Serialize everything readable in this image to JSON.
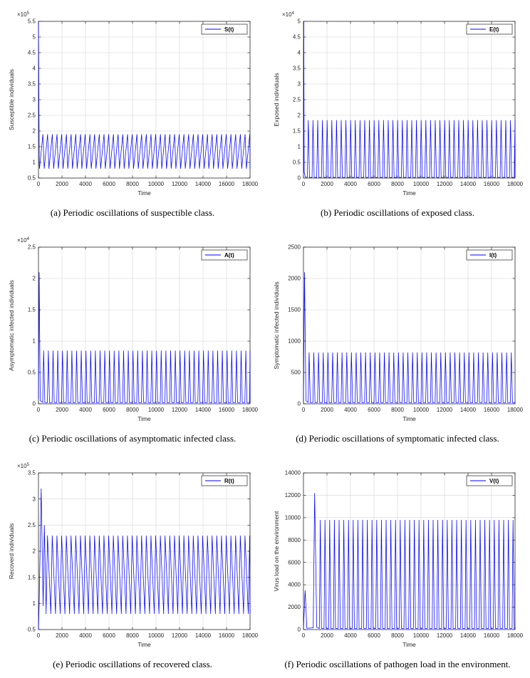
{
  "figure": {
    "line_color": "#0000ff",
    "grid_color": "#d6d6d6",
    "axis_color": "#262626",
    "background": "#ffffff"
  },
  "chart_data": [
    {
      "id": "susceptible",
      "type": "line",
      "caption": "(a) Periodic oscillations of suspectible class.",
      "legend": "S(t)",
      "xlabel": "Time",
      "ylabel": "Susceptible individuals",
      "xlim": [
        0,
        18000
      ],
      "xticks": [
        0,
        2000,
        4000,
        6000,
        8000,
        10000,
        12000,
        14000,
        16000,
        18000
      ],
      "ylim": [
        0.5,
        5.5
      ],
      "yticks": [
        0.5,
        1,
        1.5,
        2,
        2.5,
        3,
        3.5,
        4,
        4.5,
        5,
        5.5
      ],
      "y_exponent": 5,
      "series": {
        "name": "S(t)",
        "color": "#0000ff",
        "transient_points": [
          [
            0,
            5.5
          ],
          [
            70,
            0.92
          ]
        ],
        "oscillation": {
          "type": "sawtooth",
          "start": 90,
          "period": 400,
          "min": 0.8,
          "max": 1.9,
          "rise_fraction": 0.72
        }
      }
    },
    {
      "id": "exposed",
      "type": "line",
      "caption": "(b) Periodic oscillations of exposed class.",
      "legend": "E(t)",
      "xlabel": "Time",
      "ylabel": "Exposed individuals",
      "xlim": [
        0,
        18000
      ],
      "xticks": [
        0,
        2000,
        4000,
        6000,
        8000,
        10000,
        12000,
        14000,
        16000,
        18000
      ],
      "ylim": [
        0,
        5
      ],
      "yticks": [
        0,
        0.5,
        1,
        1.5,
        2,
        2.5,
        3,
        3.5,
        4,
        4.5,
        5
      ],
      "y_exponent": 4,
      "series": {
        "name": "E(t)",
        "color": "#0000ff",
        "transient_points": [
          [
            0,
            0.15
          ],
          [
            25,
            5.0
          ],
          [
            60,
            0.2
          ],
          [
            150,
            0.03
          ]
        ],
        "oscillation": {
          "type": "spikes",
          "start": 330,
          "period": 400,
          "base": 0.02,
          "peak": 1.85,
          "width": 180
        }
      }
    },
    {
      "id": "asymptomatic",
      "type": "line",
      "caption": "(c) Periodic oscillations of asymptomatic infected class.",
      "legend": "A(t)",
      "xlabel": "Time",
      "ylabel": "Asymptomatic infected individuals",
      "xlim": [
        0,
        18000
      ],
      "xticks": [
        0,
        2000,
        4000,
        6000,
        8000,
        10000,
        12000,
        14000,
        16000,
        18000
      ],
      "ylim": [
        0,
        2.5
      ],
      "yticks": [
        0,
        0.5,
        1,
        1.5,
        2,
        2.5
      ],
      "y_exponent": 4,
      "series": {
        "name": "A(t)",
        "color": "#0000ff",
        "transient_points": [
          [
            0,
            0.08
          ],
          [
            60,
            2.1
          ],
          [
            150,
            0.05
          ]
        ],
        "oscillation": {
          "type": "spikes",
          "start": 360,
          "period": 400,
          "base": 0.02,
          "peak": 0.85,
          "width": 180
        }
      }
    },
    {
      "id": "symptomatic",
      "type": "line",
      "caption": "(d) Periodic oscillations of symptomatic infected class.",
      "legend": "I(t)",
      "xlabel": "Time",
      "ylabel": "Symptomatic infected individuals",
      "xlim": [
        0,
        18000
      ],
      "xticks": [
        0,
        2000,
        4000,
        6000,
        8000,
        10000,
        12000,
        14000,
        16000,
        18000
      ],
      "ylim": [
        0,
        2500
      ],
      "yticks": [
        0,
        500,
        1000,
        1500,
        2000,
        2500
      ],
      "y_exponent": null,
      "series": {
        "name": "I(t)",
        "color": "#0000ff",
        "transient_points": [
          [
            0,
            40
          ],
          [
            90,
            2100
          ],
          [
            210,
            50
          ]
        ],
        "oscillation": {
          "type": "spikes",
          "start": 400,
          "period": 400,
          "base": 20,
          "peak": 820,
          "width": 180
        }
      }
    },
    {
      "id": "recovered",
      "type": "line",
      "caption": "(e) Periodic oscillations of recovered class.",
      "legend": "R(t)",
      "xlabel": "Time",
      "ylabel": "Recoverd individuals",
      "xlim": [
        0,
        18000
      ],
      "xticks": [
        0,
        2000,
        4000,
        6000,
        8000,
        10000,
        12000,
        14000,
        16000,
        18000
      ],
      "ylim": [
        0.5,
        3.5
      ],
      "yticks": [
        0.5,
        1,
        1.5,
        2,
        2.5,
        3,
        3.5
      ],
      "y_exponent": 5,
      "series": {
        "name": "R(t)",
        "color": "#0000ff",
        "transient_points": [
          [
            0,
            0.5
          ],
          [
            60,
            1.0
          ],
          [
            230,
            3.2
          ],
          [
            400,
            0.95
          ],
          [
            500,
            2.5
          ],
          [
            650,
            0.85
          ]
        ],
        "oscillation": {
          "type": "sawtooth",
          "start": 650,
          "period": 400,
          "min": 0.8,
          "max": 2.3,
          "rise_fraction": 0.3
        }
      }
    },
    {
      "id": "virus-load",
      "type": "line",
      "caption": "(f) Periodic oscillations of pathogen load in the environment.",
      "legend": "V(t)",
      "xlabel": "Time",
      "ylabel": "Virus load on the environment",
      "xlim": [
        0,
        18000
      ],
      "xticks": [
        0,
        2000,
        4000,
        6000,
        8000,
        10000,
        12000,
        14000,
        16000,
        18000
      ],
      "ylim": [
        0,
        14000
      ],
      "yticks": [
        0,
        2000,
        4000,
        6000,
        8000,
        10000,
        12000,
        14000
      ],
      "y_exponent": null,
      "series": {
        "name": "V(t)",
        "color": "#0000ff",
        "transient_points": [
          [
            0,
            60
          ],
          [
            140,
            3500
          ],
          [
            290,
            120
          ],
          [
            830,
            150
          ],
          [
            950,
            12200
          ],
          [
            1130,
            200
          ],
          [
            1250,
            150
          ]
        ],
        "oscillation": {
          "type": "spikes",
          "start": 1350,
          "period": 400,
          "base": 100,
          "peak": 9800,
          "width": 180
        }
      }
    }
  ]
}
